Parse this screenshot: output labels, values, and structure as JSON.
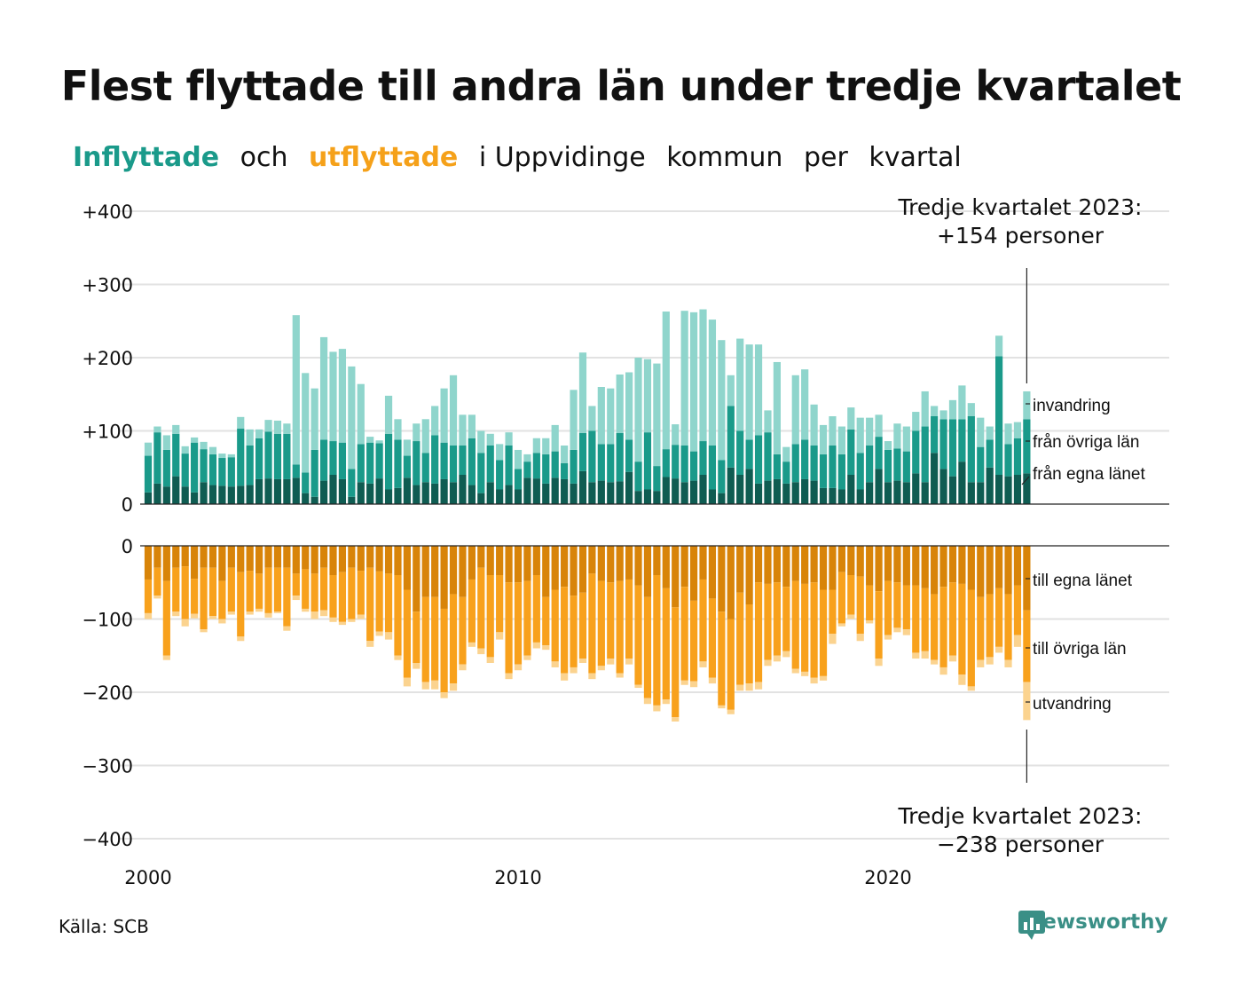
{
  "title": "Flest flyttade till andra län under tredje kvartalet",
  "subtitle": {
    "part1": "Inflyttade",
    "part2": "och",
    "part3": "utflyttade",
    "part4": "i Uppvidinge",
    "part5": "kommun",
    "part6": "per",
    "part7": "kvartal"
  },
  "colors": {
    "in_egna": "#0f5c52",
    "in_ovriga": "#1a9a8a",
    "in_invandring": "#8fd5cc",
    "out_egna": "#d88409",
    "out_ovriga": "#f8a11c",
    "out_utvandring": "#fbd38f"
  },
  "source": "Källa: SCB",
  "logo": "Newsworthy",
  "annotation_top": {
    "line1": "Tredje kvartalet 2023:",
    "line2": "+154 personer"
  },
  "annotation_bottom": {
    "line1": "Tredje kvartalet 2023:",
    "line2": "−238 personer"
  },
  "chart_data": [
    {
      "type": "bar",
      "stacked": true,
      "x_start": "2000Q1",
      "x_end": "2023Q3",
      "xticks": [
        "2000",
        "2010",
        "2020"
      ],
      "yticks": [
        "0",
        "+100",
        "+200",
        "+300",
        "+400"
      ],
      "ylim": [
        0,
        400
      ],
      "grid": true,
      "series": [
        {
          "name": "från egna länet",
          "values": [
            16,
            28,
            24,
            38,
            24,
            16,
            30,
            26,
            25,
            24,
            25,
            26,
            34,
            35,
            34,
            34,
            36,
            15,
            10,
            32,
            40,
            34,
            10,
            30,
            28,
            35,
            20,
            22,
            36,
            26,
            30,
            28,
            34,
            30,
            40,
            26,
            15,
            30,
            20,
            26,
            20,
            36,
            35,
            28,
            36,
            34,
            28,
            45,
            30,
            32,
            30,
            31,
            44,
            18,
            20,
            18,
            37,
            35,
            30,
            32,
            40,
            20,
            15,
            50,
            40,
            48,
            28,
            32,
            34,
            28,
            30,
            34,
            32,
            22,
            22,
            20,
            40,
            20,
            30,
            48,
            30,
            32,
            30,
            42,
            30,
            70,
            48,
            38,
            58,
            30,
            30,
            50,
            40,
            38,
            40,
            42
          ]
        },
        {
          "name": "från övriga län",
          "values": [
            50,
            70,
            50,
            58,
            45,
            68,
            45,
            42,
            38,
            40,
            78,
            54,
            56,
            64,
            62,
            62,
            18,
            28,
            64,
            56,
            46,
            50,
            38,
            52,
            56,
            48,
            76,
            66,
            30,
            60,
            40,
            66,
            50,
            50,
            40,
            64,
            55,
            50,
            40,
            54,
            28,
            22,
            35,
            40,
            36,
            22,
            46,
            52,
            70,
            50,
            52,
            66,
            44,
            40,
            78,
            34,
            38,
            46,
            50,
            40,
            46,
            60,
            45,
            84,
            60,
            40,
            66,
            66,
            34,
            30,
            52,
            54,
            48,
            46,
            58,
            48,
            62,
            50,
            50,
            44,
            44,
            44,
            42,
            58,
            76,
            50,
            68,
            78,
            58,
            90,
            48,
            38,
            162,
            44,
            50,
            74
          ]
        },
        {
          "name": "invandring",
          "values": [
            18,
            8,
            20,
            12,
            10,
            7,
            10,
            10,
            6,
            4,
            16,
            22,
            12,
            16,
            18,
            14,
            204,
            136,
            84,
            140,
            122,
            128,
            140,
            82,
            8,
            4,
            52,
            28,
            22,
            24,
            46,
            40,
            74,
            96,
            42,
            32,
            30,
            16,
            22,
            18,
            26,
            10,
            20,
            22,
            36,
            24,
            82,
            110,
            34,
            78,
            76,
            80,
            92,
            142,
            100,
            140,
            188,
            28,
            184,
            190,
            180,
            172,
            164,
            42,
            126,
            130,
            124,
            30,
            126,
            20,
            94,
            96,
            56,
            40,
            40,
            38,
            30,
            48,
            38,
            30,
            12,
            34,
            34,
            26,
            48,
            14,
            12,
            26,
            46,
            18,
            40,
            18,
            28,
            28,
            22,
            38
          ]
        }
      ]
    },
    {
      "type": "bar",
      "stacked": true,
      "x_start": "2000Q1",
      "x_end": "2023Q3",
      "xticks": [
        "2000",
        "2010",
        "2020"
      ],
      "yticks": [
        "0",
        "−100",
        "−200",
        "−300",
        "−400"
      ],
      "ylim": [
        -400,
        0
      ],
      "grid": true,
      "series": [
        {
          "name": "till egna länet",
          "values": [
            -46,
            -30,
            -48,
            -30,
            -28,
            -45,
            -30,
            -30,
            -48,
            -30,
            -36,
            -34,
            -38,
            -30,
            -30,
            -30,
            -38,
            -32,
            -38,
            -30,
            -40,
            -36,
            -30,
            -34,
            -30,
            -35,
            -38,
            -40,
            -60,
            -90,
            -70,
            -70,
            -86,
            -66,
            -70,
            -46,
            -30,
            -40,
            -40,
            -50,
            -50,
            -48,
            -40,
            -70,
            -60,
            -56,
            -68,
            -64,
            -38,
            -48,
            -50,
            -48,
            -46,
            -54,
            -70,
            -40,
            -58,
            -84,
            -56,
            -75,
            -46,
            -72,
            -90,
            -100,
            -64,
            -80,
            -50,
            -52,
            -50,
            -56,
            -48,
            -52,
            -50,
            -60,
            -60,
            -36,
            -40,
            -42,
            -54,
            -62,
            -48,
            -50,
            -54,
            -54,
            -58,
            -66,
            -56,
            -50,
            -52,
            -60,
            -70,
            -66,
            -58,
            -66,
            -54,
            -88
          ]
        },
        {
          "name": "till övriga län",
          "values": [
            -46,
            -38,
            -102,
            -60,
            -72,
            -48,
            -84,
            -66,
            -52,
            -60,
            -88,
            -56,
            -48,
            -62,
            -60,
            -80,
            -30,
            -54,
            -52,
            -58,
            -58,
            -68,
            -70,
            -60,
            -100,
            -82,
            -80,
            -110,
            -120,
            -70,
            -116,
            -114,
            -114,
            -122,
            -92,
            -86,
            -110,
            -112,
            -78,
            -124,
            -112,
            -102,
            -92,
            -66,
            -98,
            -118,
            -98,
            -90,
            -136,
            -116,
            -104,
            -126,
            -108,
            -136,
            -138,
            -178,
            -152,
            -150,
            -128,
            -110,
            -112,
            -108,
            -128,
            -124,
            -126,
            -108,
            -136,
            -104,
            -100,
            -88,
            -120,
            -120,
            -130,
            -118,
            -60,
            -70,
            -54,
            -78,
            -48,
            -92,
            -74,
            -62,
            -60,
            -92,
            -86,
            -90,
            -110,
            -100,
            -124,
            -132,
            -86,
            -86,
            -80,
            -90,
            -68,
            -98
          ]
        },
        {
          "name": "utvandring",
          "values": [
            -8,
            -4,
            -6,
            -6,
            -10,
            -6,
            -4,
            -4,
            -6,
            -4,
            -6,
            -4,
            -4,
            -6,
            -2,
            -6,
            -6,
            -4,
            -10,
            -8,
            -6,
            -4,
            -4,
            -6,
            -8,
            -6,
            -10,
            -6,
            -12,
            -8,
            -10,
            -12,
            -8,
            -10,
            -8,
            -6,
            -8,
            -8,
            -10,
            -8,
            -8,
            -6,
            -8,
            -6,
            -8,
            -10,
            -8,
            -6,
            -8,
            -6,
            -8,
            -6,
            -8,
            -4,
            -8,
            -8,
            -6,
            -6,
            -6,
            -8,
            -8,
            -8,
            -4,
            -6,
            -8,
            -10,
            -10,
            -8,
            -8,
            -8,
            -6,
            -6,
            -8,
            -6,
            -14,
            -4,
            -6,
            -10,
            -4,
            -10,
            -6,
            -6,
            -8,
            -8,
            -10,
            -6,
            -10,
            -8,
            -14,
            -6,
            -10,
            -10,
            -8,
            -10,
            -16,
            -52
          ]
        }
      ]
    }
  ],
  "segment_labels_top": [
    "invandring",
    "från övriga län",
    "från egna länet"
  ],
  "segment_labels_bottom": [
    "till egna länet",
    "till övriga län",
    "utvandring"
  ]
}
